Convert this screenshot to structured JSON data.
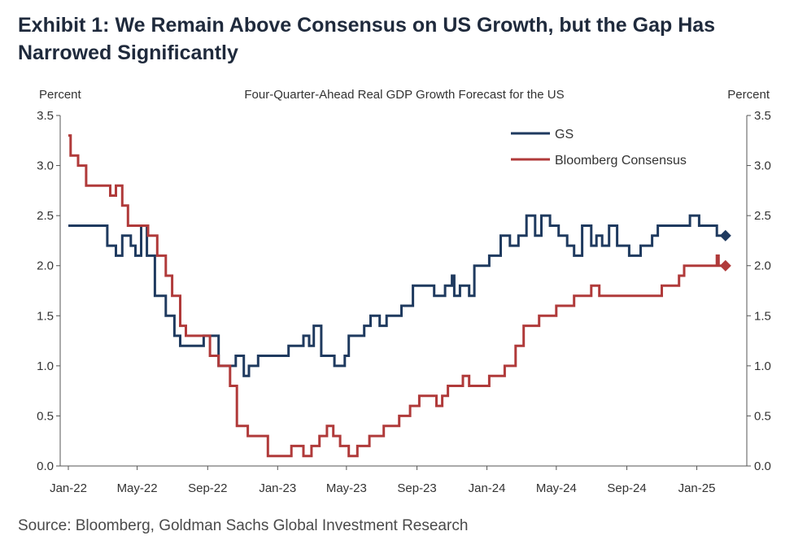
{
  "exhibit_title": "Exhibit 1: We Remain Above Consensus on US Growth, but the Gap Has Narrowed Significantly",
  "source": "Source: Bloomberg, Goldman Sachs Global Investment Research",
  "chart_data": {
    "type": "line",
    "title": "Four-Quarter-Ahead Real GDP Growth Forecast for the US",
    "y_left_label": "Percent",
    "y_right_label": "Percent",
    "ylim": [
      0,
      3.5
    ],
    "y_ticks": [
      "0.0",
      "0.5",
      "1.0",
      "1.5",
      "2.0",
      "2.5",
      "3.0",
      "3.5"
    ],
    "x_range": [
      "2022-01-01",
      "2025-03-15"
    ],
    "x_ticks": [
      {
        "label": "Jan-22",
        "date": "2022-01-01"
      },
      {
        "label": "May-22",
        "date": "2022-05-01"
      },
      {
        "label": "Sep-22",
        "date": "2022-09-01"
      },
      {
        "label": "Jan-23",
        "date": "2023-01-01"
      },
      {
        "label": "May-23",
        "date": "2023-05-01"
      },
      {
        "label": "Sep-23",
        "date": "2023-09-01"
      },
      {
        "label": "Jan-24",
        "date": "2024-01-01"
      },
      {
        "label": "May-24",
        "date": "2024-05-01"
      },
      {
        "label": "Sep-24",
        "date": "2024-09-01"
      },
      {
        "label": "Jan-25",
        "date": "2025-01-01"
      }
    ],
    "legend_position": "top-right",
    "grid": false,
    "series": [
      {
        "name": "GS",
        "color": "#1f3a5f",
        "end_marker": "diamond",
        "points": [
          [
            "2022-01-01",
            2.4
          ],
          [
            "2022-03-10",
            2.4
          ],
          [
            "2022-03-10",
            2.2
          ],
          [
            "2022-03-25",
            2.2
          ],
          [
            "2022-03-25",
            2.1
          ],
          [
            "2022-04-05",
            2.1
          ],
          [
            "2022-04-05",
            2.3
          ],
          [
            "2022-04-20",
            2.3
          ],
          [
            "2022-04-20",
            2.2
          ],
          [
            "2022-04-28",
            2.2
          ],
          [
            "2022-04-28",
            2.1
          ],
          [
            "2022-05-08",
            2.1
          ],
          [
            "2022-05-08",
            2.4
          ],
          [
            "2022-05-18",
            2.4
          ],
          [
            "2022-05-18",
            2.1
          ],
          [
            "2022-06-01",
            2.1
          ],
          [
            "2022-06-01",
            1.7
          ],
          [
            "2022-06-20",
            1.7
          ],
          [
            "2022-06-20",
            1.5
          ],
          [
            "2022-07-05",
            1.5
          ],
          [
            "2022-07-05",
            1.3
          ],
          [
            "2022-07-15",
            1.3
          ],
          [
            "2022-07-15",
            1.2
          ],
          [
            "2022-08-25",
            1.2
          ],
          [
            "2022-08-25",
            1.3
          ],
          [
            "2022-09-20",
            1.3
          ],
          [
            "2022-09-20",
            1.0
          ],
          [
            "2022-10-20",
            1.0
          ],
          [
            "2022-10-20",
            1.1
          ],
          [
            "2022-11-03",
            1.1
          ],
          [
            "2022-11-03",
            0.9
          ],
          [
            "2022-11-12",
            0.9
          ],
          [
            "2022-11-12",
            1.0
          ],
          [
            "2022-11-28",
            1.0
          ],
          [
            "2022-11-28",
            1.1
          ],
          [
            "2023-01-20",
            1.1
          ],
          [
            "2023-01-20",
            1.2
          ],
          [
            "2023-02-15",
            1.2
          ],
          [
            "2023-02-15",
            1.3
          ],
          [
            "2023-02-25",
            1.3
          ],
          [
            "2023-02-25",
            1.2
          ],
          [
            "2023-03-05",
            1.2
          ],
          [
            "2023-03-05",
            1.4
          ],
          [
            "2023-03-18",
            1.4
          ],
          [
            "2023-03-18",
            1.1
          ],
          [
            "2023-04-10",
            1.1
          ],
          [
            "2023-04-10",
            1.0
          ],
          [
            "2023-04-28",
            1.0
          ],
          [
            "2023-04-28",
            1.1
          ],
          [
            "2023-05-05",
            1.1
          ],
          [
            "2023-05-05",
            1.3
          ],
          [
            "2023-06-01",
            1.3
          ],
          [
            "2023-06-01",
            1.4
          ],
          [
            "2023-06-12",
            1.4
          ],
          [
            "2023-06-12",
            1.5
          ],
          [
            "2023-06-28",
            1.5
          ],
          [
            "2023-06-28",
            1.4
          ],
          [
            "2023-07-10",
            1.4
          ],
          [
            "2023-07-10",
            1.5
          ],
          [
            "2023-08-05",
            1.5
          ],
          [
            "2023-08-05",
            1.6
          ],
          [
            "2023-08-25",
            1.6
          ],
          [
            "2023-08-25",
            1.8
          ],
          [
            "2023-10-01",
            1.8
          ],
          [
            "2023-10-01",
            1.7
          ],
          [
            "2023-10-20",
            1.7
          ],
          [
            "2023-10-20",
            1.8
          ],
          [
            "2023-11-01",
            1.8
          ],
          [
            "2023-11-01",
            1.9
          ],
          [
            "2023-11-05",
            1.9
          ],
          [
            "2023-11-05",
            1.7
          ],
          [
            "2023-11-15",
            1.7
          ],
          [
            "2023-11-15",
            1.8
          ],
          [
            "2023-12-01",
            1.8
          ],
          [
            "2023-12-01",
            1.7
          ],
          [
            "2023-12-10",
            1.7
          ],
          [
            "2023-12-10",
            2.0
          ],
          [
            "2024-01-05",
            2.0
          ],
          [
            "2024-01-05",
            2.1
          ],
          [
            "2024-01-25",
            2.1
          ],
          [
            "2024-01-25",
            2.3
          ],
          [
            "2024-02-10",
            2.3
          ],
          [
            "2024-02-10",
            2.2
          ],
          [
            "2024-02-25",
            2.2
          ],
          [
            "2024-02-25",
            2.3
          ],
          [
            "2024-03-10",
            2.3
          ],
          [
            "2024-03-10",
            2.5
          ],
          [
            "2024-03-25",
            2.5
          ],
          [
            "2024-03-25",
            2.3
          ],
          [
            "2024-04-05",
            2.3
          ],
          [
            "2024-04-05",
            2.5
          ],
          [
            "2024-04-20",
            2.5
          ],
          [
            "2024-04-20",
            2.4
          ],
          [
            "2024-05-05",
            2.4
          ],
          [
            "2024-05-05",
            2.3
          ],
          [
            "2024-05-20",
            2.3
          ],
          [
            "2024-05-20",
            2.2
          ],
          [
            "2024-06-01",
            2.2
          ],
          [
            "2024-06-01",
            2.1
          ],
          [
            "2024-06-15",
            2.1
          ],
          [
            "2024-06-15",
            2.4
          ],
          [
            "2024-07-01",
            2.4
          ],
          [
            "2024-07-01",
            2.2
          ],
          [
            "2024-07-10",
            2.2
          ],
          [
            "2024-07-10",
            2.3
          ],
          [
            "2024-07-20",
            2.3
          ],
          [
            "2024-07-20",
            2.2
          ],
          [
            "2024-08-01",
            2.2
          ],
          [
            "2024-08-01",
            2.4
          ],
          [
            "2024-08-15",
            2.4
          ],
          [
            "2024-08-15",
            2.2
          ],
          [
            "2024-09-05",
            2.2
          ],
          [
            "2024-09-05",
            2.1
          ],
          [
            "2024-09-25",
            2.1
          ],
          [
            "2024-09-25",
            2.2
          ],
          [
            "2024-10-15",
            2.2
          ],
          [
            "2024-10-15",
            2.3
          ],
          [
            "2024-10-25",
            2.3
          ],
          [
            "2024-10-25",
            2.4
          ],
          [
            "2024-12-20",
            2.4
          ],
          [
            "2024-12-20",
            2.5
          ],
          [
            "2025-01-05",
            2.5
          ],
          [
            "2025-01-05",
            2.4
          ],
          [
            "2025-02-05",
            2.4
          ],
          [
            "2025-02-05",
            2.3
          ],
          [
            "2025-02-20",
            2.3
          ]
        ]
      },
      {
        "name": "Bloomberg Consensus",
        "color": "#b03a3a",
        "end_marker": "diamond",
        "points": [
          [
            "2022-01-01",
            3.3
          ],
          [
            "2022-01-05",
            3.3
          ],
          [
            "2022-01-05",
            3.1
          ],
          [
            "2022-01-18",
            3.1
          ],
          [
            "2022-01-18",
            3.0
          ],
          [
            "2022-02-01",
            3.0
          ],
          [
            "2022-02-01",
            2.8
          ],
          [
            "2022-03-15",
            2.8
          ],
          [
            "2022-03-15",
            2.7
          ],
          [
            "2022-03-25",
            2.7
          ],
          [
            "2022-03-25",
            2.8
          ],
          [
            "2022-04-05",
            2.8
          ],
          [
            "2022-04-05",
            2.6
          ],
          [
            "2022-04-15",
            2.6
          ],
          [
            "2022-04-15",
            2.4
          ],
          [
            "2022-05-20",
            2.4
          ],
          [
            "2022-05-20",
            2.3
          ],
          [
            "2022-06-05",
            2.3
          ],
          [
            "2022-06-05",
            2.1
          ],
          [
            "2022-06-20",
            2.1
          ],
          [
            "2022-06-20",
            1.9
          ],
          [
            "2022-07-01",
            1.9
          ],
          [
            "2022-07-01",
            1.7
          ],
          [
            "2022-07-15",
            1.7
          ],
          [
            "2022-07-15",
            1.4
          ],
          [
            "2022-07-25",
            1.4
          ],
          [
            "2022-07-25",
            1.3
          ],
          [
            "2022-09-05",
            1.3
          ],
          [
            "2022-09-05",
            1.1
          ],
          [
            "2022-09-20",
            1.1
          ],
          [
            "2022-09-20",
            1.0
          ],
          [
            "2022-10-10",
            1.0
          ],
          [
            "2022-10-10",
            0.8
          ],
          [
            "2022-10-22",
            0.8
          ],
          [
            "2022-10-22",
            0.4
          ],
          [
            "2022-11-10",
            0.4
          ],
          [
            "2022-11-10",
            0.3
          ],
          [
            "2022-12-15",
            0.3
          ],
          [
            "2022-12-15",
            0.1
          ],
          [
            "2023-01-25",
            0.1
          ],
          [
            "2023-01-25",
            0.2
          ],
          [
            "2023-02-15",
            0.2
          ],
          [
            "2023-02-15",
            0.1
          ],
          [
            "2023-03-01",
            0.1
          ],
          [
            "2023-03-01",
            0.2
          ],
          [
            "2023-03-15",
            0.2
          ],
          [
            "2023-03-15",
            0.3
          ],
          [
            "2023-03-28",
            0.3
          ],
          [
            "2023-03-28",
            0.4
          ],
          [
            "2023-04-08",
            0.4
          ],
          [
            "2023-04-08",
            0.3
          ],
          [
            "2023-04-20",
            0.3
          ],
          [
            "2023-04-20",
            0.2
          ],
          [
            "2023-05-05",
            0.2
          ],
          [
            "2023-05-05",
            0.1
          ],
          [
            "2023-05-20",
            0.1
          ],
          [
            "2023-05-20",
            0.2
          ],
          [
            "2023-06-10",
            0.2
          ],
          [
            "2023-06-10",
            0.3
          ],
          [
            "2023-07-05",
            0.3
          ],
          [
            "2023-07-05",
            0.4
          ],
          [
            "2023-08-01",
            0.4
          ],
          [
            "2023-08-01",
            0.5
          ],
          [
            "2023-08-20",
            0.5
          ],
          [
            "2023-08-20",
            0.6
          ],
          [
            "2023-09-05",
            0.6
          ],
          [
            "2023-09-05",
            0.7
          ],
          [
            "2023-10-05",
            0.7
          ],
          [
            "2023-10-05",
            0.6
          ],
          [
            "2023-10-15",
            0.6
          ],
          [
            "2023-10-15",
            0.7
          ],
          [
            "2023-10-25",
            0.7
          ],
          [
            "2023-10-25",
            0.8
          ],
          [
            "2023-11-20",
            0.8
          ],
          [
            "2023-11-20",
            0.9
          ],
          [
            "2023-12-01",
            0.9
          ],
          [
            "2023-12-01",
            0.8
          ],
          [
            "2024-01-05",
            0.8
          ],
          [
            "2024-01-05",
            0.9
          ],
          [
            "2024-02-01",
            0.9
          ],
          [
            "2024-02-01",
            1.0
          ],
          [
            "2024-02-20",
            1.0
          ],
          [
            "2024-02-20",
            1.2
          ],
          [
            "2024-03-05",
            1.2
          ],
          [
            "2024-03-05",
            1.4
          ],
          [
            "2024-04-01",
            1.4
          ],
          [
            "2024-04-01",
            1.5
          ],
          [
            "2024-05-01",
            1.5
          ],
          [
            "2024-05-01",
            1.6
          ],
          [
            "2024-06-01",
            1.6
          ],
          [
            "2024-06-01",
            1.7
          ],
          [
            "2024-07-01",
            1.7
          ],
          [
            "2024-07-01",
            1.8
          ],
          [
            "2024-07-15",
            1.8
          ],
          [
            "2024-07-15",
            1.7
          ],
          [
            "2024-11-01",
            1.7
          ],
          [
            "2024-11-01",
            1.8
          ],
          [
            "2024-12-01",
            1.8
          ],
          [
            "2024-12-01",
            1.9
          ],
          [
            "2024-12-10",
            1.9
          ],
          [
            "2024-12-10",
            2.0
          ],
          [
            "2025-02-05",
            2.0
          ],
          [
            "2025-02-05",
            2.1
          ],
          [
            "2025-02-08",
            2.1
          ],
          [
            "2025-02-08",
            2.0
          ],
          [
            "2025-02-20",
            2.0
          ]
        ]
      }
    ]
  }
}
